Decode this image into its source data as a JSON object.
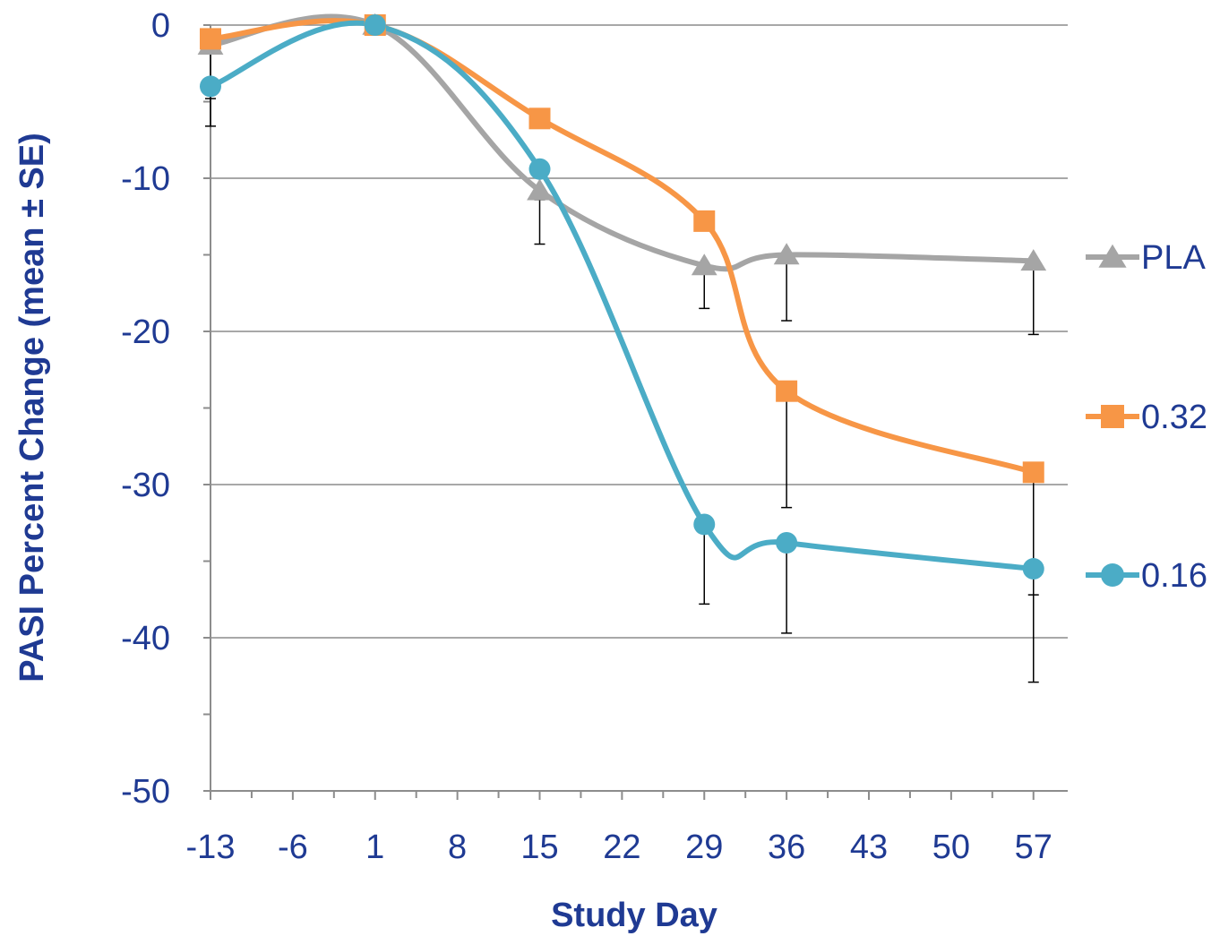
{
  "chart_data": {
    "type": "line",
    "xlabel": "Study Day",
    "ylabel": "PASI Percent Change (mean ± SE)",
    "xlim": [
      -13,
      57
    ],
    "ylim": [
      -50,
      0
    ],
    "x_ticks": [
      "-13",
      "-6",
      "1",
      "8",
      "15",
      "22",
      "29",
      "36",
      "43",
      "50",
      "57"
    ],
    "x_tick_values": [
      -13,
      -6,
      1,
      8,
      15,
      22,
      29,
      36,
      43,
      50,
      57
    ],
    "y_ticks": [
      "0",
      "-10",
      "-20",
      "-30",
      "-40",
      "-50"
    ],
    "y_tick_values": [
      0,
      -10,
      -20,
      -30,
      -40,
      -50
    ],
    "grid": "horizontal major gridlines",
    "legend_position": "right",
    "series": [
      {
        "name": "PLA",
        "color": "#a5a5a5",
        "marker": "triangle",
        "x": [
          -13,
          1,
          15,
          29,
          36,
          57
        ],
        "y": [
          -1.3,
          0,
          -10.8,
          -15.7,
          -15.0,
          -15.4
        ],
        "se": [
          3.5,
          0,
          3.5,
          2.8,
          4.3,
          4.8
        ]
      },
      {
        "name": "0.32",
        "color": "#f79646",
        "marker": "square",
        "x": [
          -13,
          1,
          15,
          29,
          36,
          57
        ],
        "y": [
          -0.9,
          0,
          -6.1,
          -12.8,
          -23.9,
          -29.2
        ],
        "se": [
          0,
          0,
          0,
          0,
          7.6,
          8.0
        ]
      },
      {
        "name": "0.16",
        "color": "#4bacc6",
        "marker": "circle",
        "x": [
          -13,
          1,
          15,
          29,
          36,
          57
        ],
        "y": [
          -4.0,
          0,
          -9.4,
          -32.6,
          -33.8,
          -35.5
        ],
        "se": [
          2.6,
          0,
          2.0,
          5.2,
          5.9,
          7.4
        ]
      }
    ]
  }
}
